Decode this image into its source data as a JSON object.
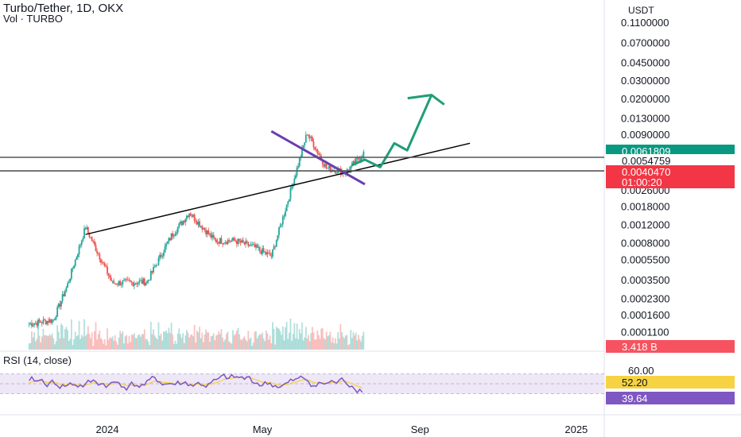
{
  "header": {
    "title": "Turbo/Tether, 1D, OKX",
    "subtitle": "Vol · TURBO",
    "axis_unit": "USDT"
  },
  "colors": {
    "up": "#26a69a",
    "down": "#ef5350",
    "trend_line": "#000000",
    "wedge_line": "#6a3fb0",
    "projection": "#1f9e78",
    "rsi_line": "#7e57c2",
    "rsi_ma": "#f5d342",
    "rsi_band": "#ede7f6"
  },
  "badges": {
    "current_price": "0.0061809",
    "line_price": "0.0054759",
    "last_price": "0.0040470",
    "countdown": "01:00:20",
    "volume": "3.418 B",
    "rsi_ma_value": "52.20",
    "rsi_value": "39.64"
  },
  "rsi": {
    "title": "RSI (14, close)",
    "tick_label": "60.00",
    "value": 39.64,
    "ma_value": 52.2,
    "band": [
      30,
      70
    ]
  },
  "chart_data": {
    "type": "candlestick",
    "title": "Turbo/Tether, 1D, OKX",
    "y_scale": "log",
    "y_ticks": [
      "0.1100000",
      "0.0700000",
      "0.0450000",
      "0.0300000",
      "0.0200000",
      "0.0130000",
      "0.0090000",
      "0.0026000",
      "0.0018000",
      "0.0012000",
      "0.0008000",
      "0.0005500",
      "0.0003500",
      "0.0002300",
      "0.0001600",
      "0.0001100"
    ],
    "x_ticks": [
      "2024",
      "May",
      "Sep",
      "2025"
    ],
    "series": [
      {
        "kind": "price",
        "x": [
          "2023-11-01",
          "2023-11-20",
          "2023-12-01",
          "2023-12-15",
          "2024-01-05",
          "2024-02-01",
          "2024-02-20",
          "2024-03-05",
          "2024-03-25",
          "2024-04-10",
          "2024-04-25",
          "2024-05-08",
          "2024-05-20",
          "2024-06-05",
          "2024-06-20",
          "2024-07-05",
          "2024-07-20"
        ],
        "values": [
          0.000133,
          0.000145,
          0.00032,
          0.00115,
          0.00033,
          0.00034,
          0.00095,
          0.0016,
          0.00085,
          0.00085,
          0.00073,
          0.0006,
          0.0019,
          0.0095,
          0.0043,
          0.0039,
          0.0062
        ]
      }
    ],
    "annotations": [
      {
        "type": "trend_line",
        "from": [
          "2023-12-15",
          0.00098
        ],
        "to": [
          "2024-10-10",
          0.0075
        ]
      },
      {
        "type": "wedge_line",
        "from": [
          "2024-05-08",
          0.0098
        ],
        "to": [
          "2024-07-20",
          0.003
        ]
      },
      {
        "type": "projection",
        "points": [
          [
            "2024-07-10",
            0.0046
          ],
          [
            "2024-07-20",
            0.0052
          ],
          [
            "2024-08-01",
            0.0044
          ],
          [
            "2024-08-12",
            0.0075
          ],
          [
            "2024-08-22",
            0.0064
          ],
          [
            "2024-09-10",
            0.022
          ]
        ]
      },
      {
        "type": "horizontal_line",
        "value": 0.0054759
      },
      {
        "type": "horizontal_line",
        "value": 0.004047
      }
    ]
  }
}
